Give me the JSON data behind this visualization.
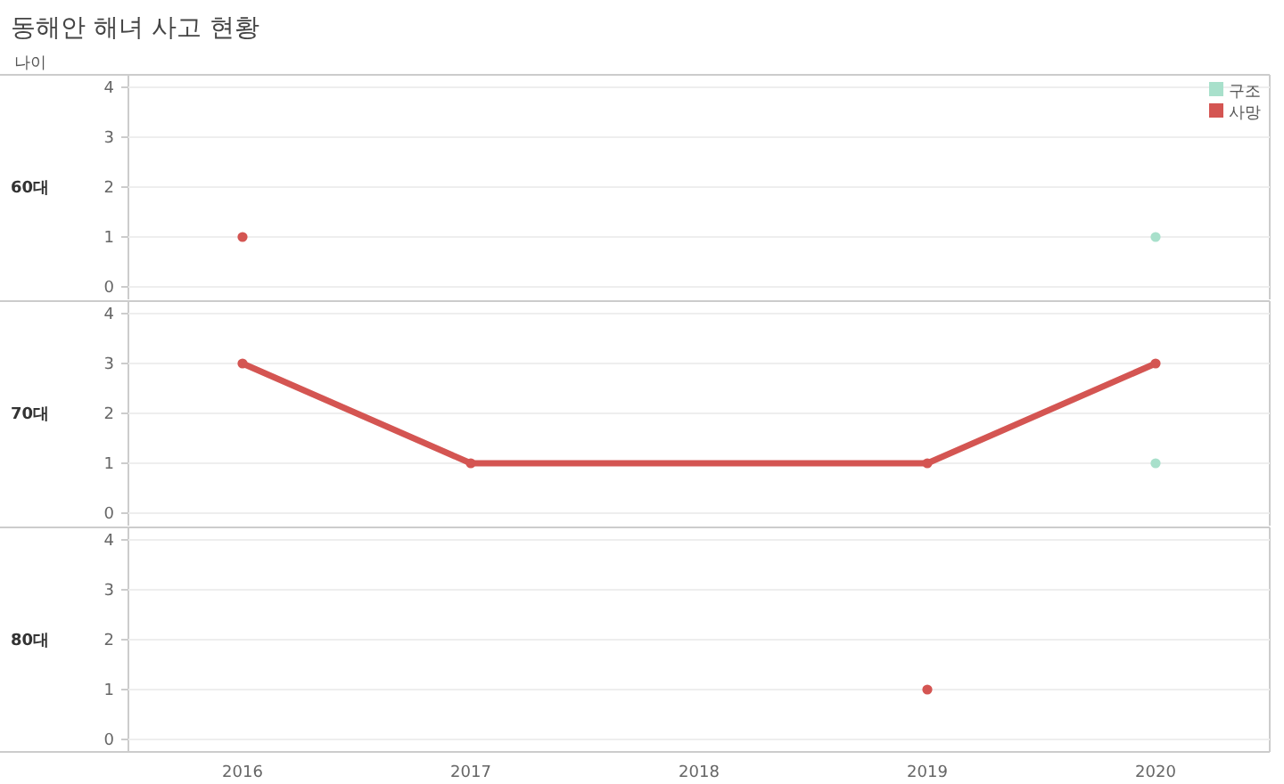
{
  "chart_data": [
    {
      "type": "line",
      "title": "동해안 해녀 사고 현황",
      "annotations": [
        "나이"
      ],
      "ylabel": "60대",
      "categories": [
        "2016",
        "2017",
        "2018",
        "2019",
        "2020"
      ],
      "ylim": [
        -0.25,
        4.25
      ],
      "yticks": [
        0,
        1,
        2,
        3,
        4
      ],
      "grid": "y",
      "marker": "circle",
      "legend": "top right",
      "tick_labels": "y",
      "series": [
        {
          "name": "구조",
          "color": "#a8e0cb",
          "values": [
            null,
            null,
            null,
            null,
            1
          ]
        },
        {
          "name": "사망",
          "color": "#d45552",
          "values": [
            1,
            null,
            null,
            null,
            null
          ]
        }
      ]
    },
    {
      "type": "line",
      "ylabel": "70대",
      "categories": [
        "2016",
        "2017",
        "2018",
        "2019",
        "2020"
      ],
      "ylim": [
        -0.25,
        4.25
      ],
      "yticks": [
        0,
        1,
        2,
        3,
        4
      ],
      "grid": "y",
      "marker": "circle",
      "tick_labels": "y",
      "series": [
        {
          "color": "#a8e0cb",
          "values": [
            null,
            null,
            null,
            null,
            1
          ]
        },
        {
          "color": "#d45552",
          "values": [
            3,
            1,
            null,
            1,
            3
          ]
        }
      ]
    },
    {
      "type": "line",
      "ylabel": "80대",
      "categories": [
        "2016",
        "2017",
        "2018",
        "2019",
        "2020"
      ],
      "ylim": [
        -0.25,
        4.25
      ],
      "yticks": [
        0,
        1,
        2,
        3,
        4
      ],
      "grid": "y",
      "marker": "circle",
      "series": [
        {
          "color": "#d45552",
          "values": [
            null,
            null,
            null,
            1,
            null
          ]
        }
      ]
    }
  ]
}
